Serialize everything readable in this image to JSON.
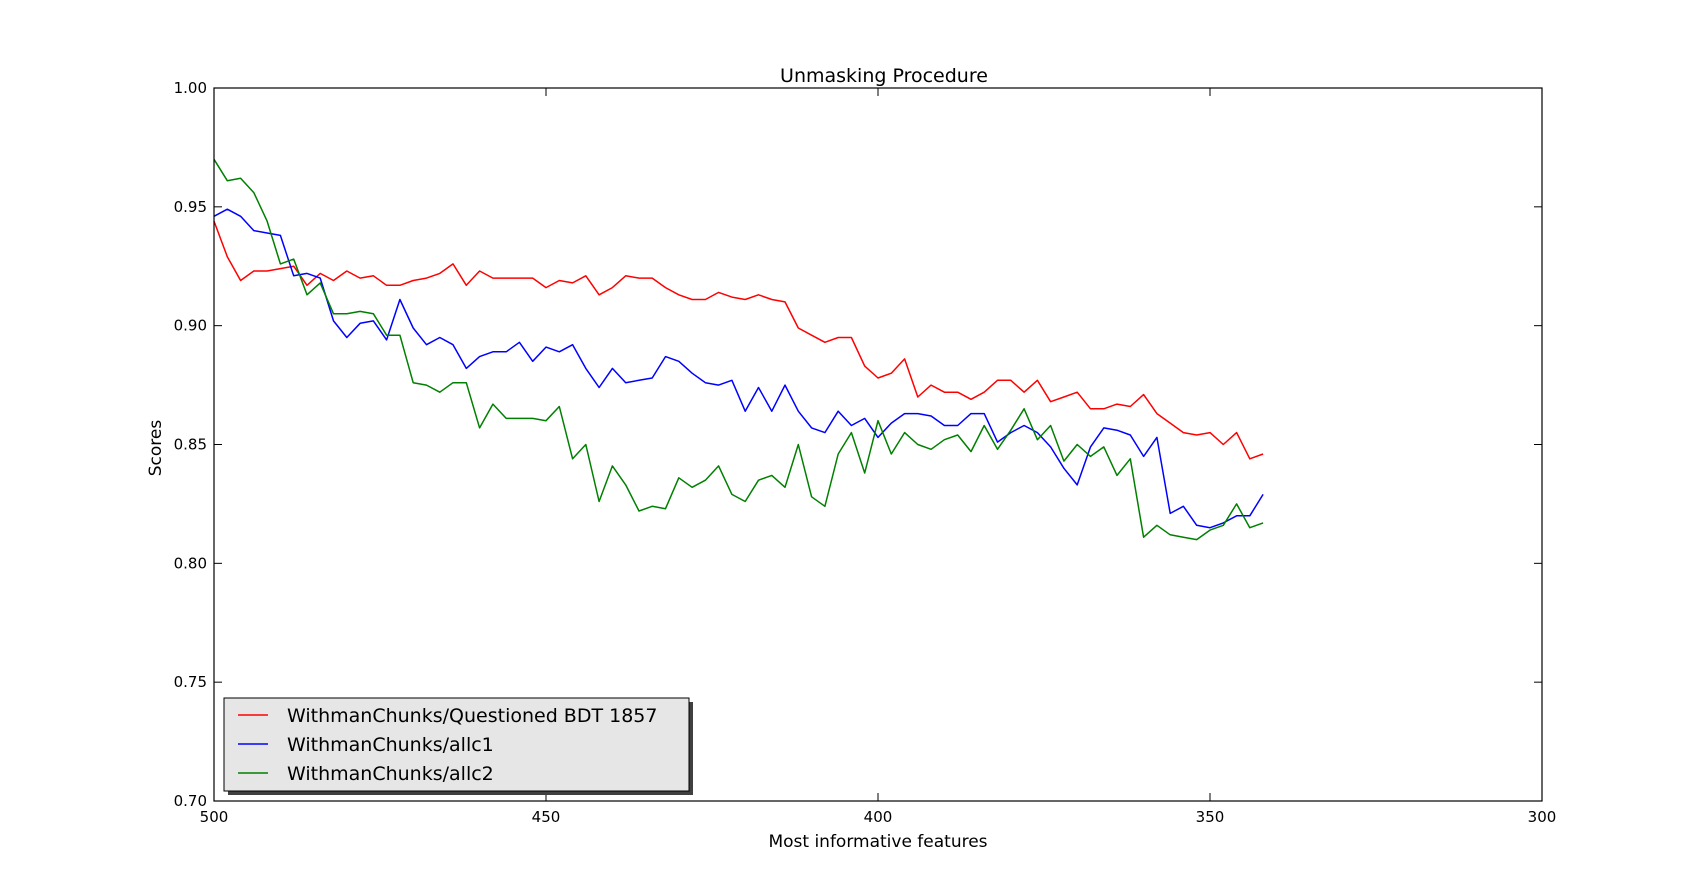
{
  "chart_data": {
    "type": "line",
    "title": "Unmasking Procedure",
    "xlabel": "Most informative features",
    "ylabel": "Scores",
    "xlim": [
      500,
      300
    ],
    "ylim": [
      0.7,
      1.0
    ],
    "x_ticks": [
      500,
      450,
      400,
      350,
      300
    ],
    "y_ticks": [
      0.7,
      0.75,
      0.8,
      0.85,
      0.9,
      0.95,
      1.0
    ],
    "x_tick_labels": [
      "500",
      "450",
      "400",
      "350",
      "300"
    ],
    "y_tick_labels": [
      "0.70",
      "0.75",
      "0.80",
      "0.85",
      "0.90",
      "0.95",
      "1.00"
    ],
    "grid": false,
    "legend_position": "lower-left",
    "x": [
      500,
      498,
      496,
      494,
      492,
      490,
      488,
      486,
      484,
      482,
      480,
      478,
      476,
      474,
      472,
      470,
      468,
      466,
      464,
      462,
      460,
      458,
      456,
      454,
      452,
      450,
      448,
      446,
      444,
      442,
      440,
      438,
      436,
      434,
      432,
      430,
      428,
      426,
      424,
      422,
      420,
      418,
      416,
      414,
      412,
      410,
      408,
      406,
      404,
      402,
      400,
      398,
      396,
      394,
      392,
      390,
      388,
      386,
      384,
      382,
      380,
      378,
      376,
      374,
      372,
      370,
      368,
      366,
      364,
      362,
      360,
      358,
      356,
      354,
      352,
      350,
      348,
      346,
      344,
      342
    ],
    "series": [
      {
        "name": "WithmanChunks/Questioned BDT 1857",
        "color": "#ff0000",
        "values": [
          0.944,
          0.929,
          0.919,
          0.923,
          0.923,
          0.924,
          0.925,
          0.917,
          0.922,
          0.919,
          0.923,
          0.92,
          0.921,
          0.917,
          0.917,
          0.919,
          0.92,
          0.922,
          0.926,
          0.917,
          0.923,
          0.92,
          0.92,
          0.92,
          0.92,
          0.916,
          0.919,
          0.918,
          0.921,
          0.913,
          0.916,
          0.921,
          0.92,
          0.92,
          0.916,
          0.913,
          0.911,
          0.911,
          0.914,
          0.912,
          0.911,
          0.913,
          0.911,
          0.91,
          0.899,
          0.896,
          0.893,
          0.895,
          0.895,
          0.883,
          0.878,
          0.88,
          0.886,
          0.87,
          0.875,
          0.872,
          0.872,
          0.869,
          0.872,
          0.877,
          0.877,
          0.872,
          0.877,
          0.868,
          0.87,
          0.872,
          0.865,
          0.865,
          0.867,
          0.866,
          0.871,
          0.863,
          0.859,
          0.855,
          0.854,
          0.855,
          0.85,
          0.855,
          0.844,
          0.846
        ]
      },
      {
        "name": "WithmanChunks/allc1",
        "color": "#0000ff",
        "values": [
          0.946,
          0.949,
          0.946,
          0.94,
          0.939,
          0.938,
          0.921,
          0.922,
          0.92,
          0.902,
          0.895,
          0.901,
          0.902,
          0.894,
          0.911,
          0.899,
          0.892,
          0.895,
          0.892,
          0.882,
          0.887,
          0.889,
          0.889,
          0.893,
          0.885,
          0.891,
          0.889,
          0.892,
          0.882,
          0.874,
          0.882,
          0.876,
          0.877,
          0.878,
          0.887,
          0.885,
          0.88,
          0.876,
          0.875,
          0.877,
          0.864,
          0.874,
          0.864,
          0.875,
          0.864,
          0.857,
          0.855,
          0.864,
          0.858,
          0.861,
          0.853,
          0.859,
          0.863,
          0.863,
          0.862,
          0.858,
          0.858,
          0.863,
          0.863,
          0.851,
          0.855,
          0.858,
          0.855,
          0.849,
          0.84,
          0.833,
          0.849,
          0.857,
          0.856,
          0.854,
          0.845,
          0.853,
          0.821,
          0.824,
          0.816,
          0.815,
          0.817,
          0.82,
          0.82,
          0.829
        ]
      },
      {
        "name": "WithmanChunks/allc2",
        "color": "#008000",
        "values": [
          0.97,
          0.961,
          0.962,
          0.956,
          0.944,
          0.926,
          0.928,
          0.913,
          0.918,
          0.905,
          0.905,
          0.906,
          0.905,
          0.896,
          0.896,
          0.876,
          0.875,
          0.872,
          0.876,
          0.876,
          0.857,
          0.867,
          0.861,
          0.861,
          0.861,
          0.86,
          0.866,
          0.844,
          0.85,
          0.826,
          0.841,
          0.833,
          0.822,
          0.824,
          0.823,
          0.836,
          0.832,
          0.835,
          0.841,
          0.829,
          0.826,
          0.835,
          0.837,
          0.832,
          0.85,
          0.828,
          0.824,
          0.846,
          0.855,
          0.838,
          0.86,
          0.846,
          0.855,
          0.85,
          0.848,
          0.852,
          0.854,
          0.847,
          0.858,
          0.848,
          0.856,
          0.865,
          0.852,
          0.858,
          0.843,
          0.85,
          0.845,
          0.849,
          0.837,
          0.844,
          0.811,
          0.816,
          0.812,
          0.811,
          0.81,
          0.814,
          0.816,
          0.825,
          0.815,
          0.817
        ]
      }
    ]
  }
}
